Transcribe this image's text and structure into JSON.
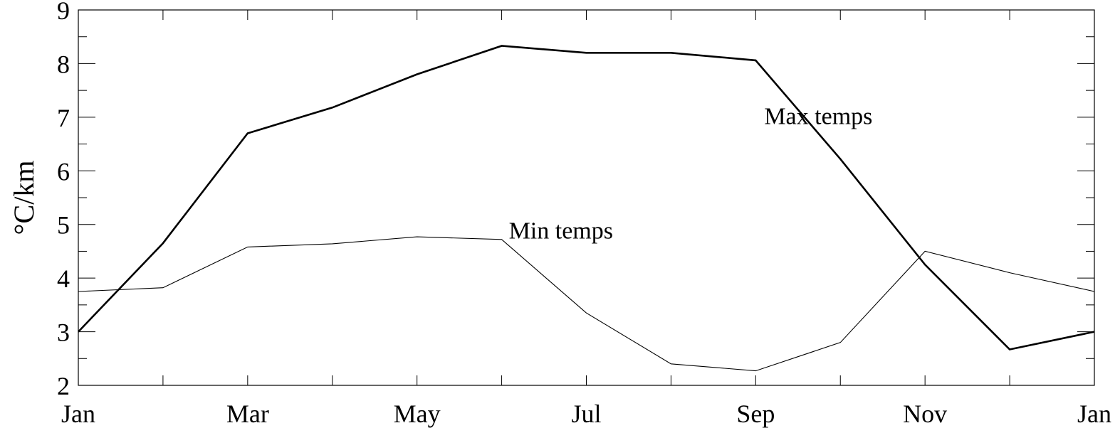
{
  "chart_data": {
    "type": "line",
    "title": "",
    "xlabel": "",
    "ylabel": "°C/km",
    "x_tick_labels": [
      "Jan",
      "Mar",
      "May",
      "Jul",
      "Sep",
      "Nov",
      "Jan"
    ],
    "x": [
      1,
      2,
      3,
      4,
      5,
      6,
      7,
      8,
      9,
      10,
      11,
      12,
      13
    ],
    "xlim": [
      1,
      13
    ],
    "ylim": [
      2,
      9
    ],
    "y_ticks": [
      2,
      3,
      4,
      5,
      6,
      7,
      8,
      9
    ],
    "grid": false,
    "legend": "none",
    "series": [
      {
        "name": "Max temps",
        "line_width": "thick",
        "values": [
          3.0,
          4.65,
          6.7,
          7.18,
          7.8,
          8.33,
          8.2,
          8.2,
          8.06,
          6.22,
          4.25,
          2.67,
          3.0
        ]
      },
      {
        "name": "Min temps",
        "line_width": "thin",
        "values": [
          3.75,
          3.82,
          4.58,
          4.64,
          4.77,
          4.72,
          3.35,
          2.4,
          2.27,
          2.8,
          4.5,
          4.1,
          3.75
        ]
      }
    ],
    "annotations": [
      {
        "text": "Max temps",
        "series": 0,
        "near_x": 9
      },
      {
        "text": "Min temps",
        "series": 1,
        "near_x": 6
      }
    ]
  }
}
